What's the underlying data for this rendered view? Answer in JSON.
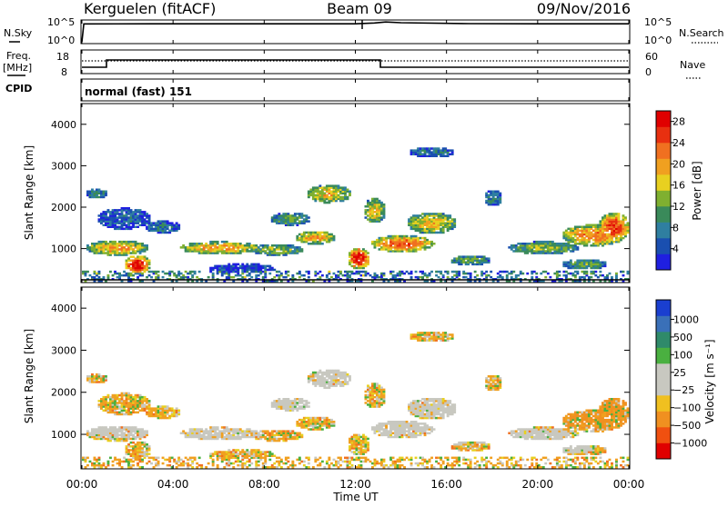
{
  "header": {
    "station": "Kerguelen (fitACF)",
    "beam": "Beam 09",
    "date": "09/Nov/2016"
  },
  "top_panels": {
    "nsky_label": "N.Sky",
    "nsky_ticks": [
      "10^5",
      "10^0"
    ],
    "nsearch_label": "N.Search",
    "nsearch_ticks": [
      "10^5",
      "10^0"
    ],
    "freq_label": "Freq.",
    "freq_unit": "[MHz]",
    "freq_ticks": [
      "18",
      "8"
    ],
    "nave_label": "Nave",
    "nave_ticks": [
      "60",
      "0"
    ],
    "cpid_label": "CPID",
    "cpid_value": "normal (fast) 151"
  },
  "colors": {
    "power_scale": [
      "#1f1fe0",
      "#1a4fb0",
      "#2f7fa0",
      "#3a8a5a",
      "#7fb030",
      "#e8d020",
      "#f0a020",
      "#f07020",
      "#e83010",
      "#e00000"
    ],
    "velocity_scale": [
      "#1a3fd0",
      "#3a70b8",
      "#2f8a6a",
      "#4ab040",
      "#c8c8c0",
      "#c8c8c0",
      "#f0c020",
      "#f09020",
      "#f05010",
      "#e00000"
    ]
  },
  "chart_data": [
    {
      "type": "line",
      "title": "",
      "xlabel": "",
      "ylabel": "N.Sky",
      "x_range": [
        "00:00",
        "24:00"
      ],
      "series": [
        {
          "name": "N.Sky",
          "x": [
            "00:00",
            "00:05",
            "03:00",
            "06:00",
            "09:00",
            "12:00",
            "12:50",
            "13:20",
            "14:00",
            "17:00",
            "20:00",
            "24:00"
          ],
          "values": [
            1,
            30000,
            32000,
            32000,
            32000,
            32000,
            50000,
            90000,
            60000,
            35000,
            32000,
            32000
          ]
        },
        {
          "name": "N.Search",
          "x": [
            "00:00",
            "24:00"
          ],
          "values": [
            1,
            1
          ]
        }
      ]
    },
    {
      "type": "line",
      "title": "",
      "xlabel": "",
      "ylabel": "Freq. [MHz]",
      "x_range": [
        "00:00",
        "24:00"
      ],
      "series": [
        {
          "name": "Freq. [MHz]",
          "x": [
            "00:00",
            "01:00",
            "01:00",
            "13:00",
            "13:00",
            "24:00"
          ],
          "values": [
            10,
            10,
            14,
            14,
            9.5,
            9.5
          ]
        },
        {
          "name": "Nave",
          "x": [
            "00:00",
            "24:00"
          ],
          "values": [
            38,
            38
          ]
        }
      ]
    },
    {
      "type": "heatmap",
      "title": "",
      "xlabel": "",
      "ylabel": "Slant Range [km]",
      "x_ticks": [
        "00:00",
        "04:00",
        "08:00",
        "12:00",
        "16:00",
        "20:00",
        "00:00"
      ],
      "y_ticks": [
        "1000",
        "2000",
        "3000",
        "4000"
      ],
      "ylim": [
        180,
        4500
      ],
      "colorbar": {
        "label": "Power [dB]",
        "ticks": [
          "4",
          "8",
          "12",
          "16",
          "20",
          "24",
          "28"
        ],
        "range": [
          0,
          30
        ]
      }
    },
    {
      "type": "heatmap",
      "title": "",
      "xlabel": "Time UT",
      "ylabel": "Slant Range [km]",
      "x_ticks": [
        "00:00",
        "04:00",
        "08:00",
        "12:00",
        "16:00",
        "20:00",
        "00:00"
      ],
      "y_ticks": [
        "1000",
        "2000",
        "3000",
        "4000"
      ],
      "ylim": [
        180,
        4500
      ],
      "colorbar": {
        "label": "Velocity [m s⁻¹]",
        "ticks": [
          "1000",
          "500",
          "100",
          "25",
          "−25",
          "−100",
          "−500",
          "−1000"
        ],
        "range": [
          -1000,
          1000
        ]
      }
    }
  ]
}
